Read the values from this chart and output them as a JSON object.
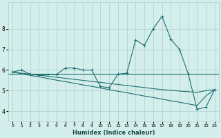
{
  "xlabel": "Humidex (Indice chaleur)",
  "x": [
    0,
    1,
    2,
    3,
    4,
    5,
    6,
    7,
    8,
    9,
    10,
    11,
    12,
    13,
    14,
    15,
    16,
    17,
    18,
    19,
    20,
    21,
    22,
    23
  ],
  "line1": [
    5.9,
    6.0,
    5.8,
    5.75,
    5.78,
    5.78,
    6.1,
    6.1,
    6.0,
    6.0,
    5.2,
    5.15,
    5.8,
    5.85,
    7.45,
    7.2,
    8.0,
    8.6,
    7.5,
    7.0,
    5.8,
    4.1,
    4.2,
    5.05
  ],
  "line2": [
    5.9,
    5.82,
    5.74,
    5.67,
    5.59,
    5.51,
    5.44,
    5.36,
    5.28,
    5.21,
    5.13,
    5.05,
    4.97,
    4.9,
    4.82,
    4.74,
    4.67,
    4.59,
    4.51,
    4.44,
    4.36,
    4.28,
    4.75,
    5.05
  ],
  "line3": [
    5.9,
    5.85,
    5.8,
    5.75,
    5.7,
    5.65,
    5.6,
    5.55,
    5.5,
    5.45,
    5.4,
    5.35,
    5.3,
    5.25,
    5.2,
    5.15,
    5.1,
    5.05,
    5.02,
    4.98,
    4.95,
    4.92,
    5.0,
    5.05
  ],
  "hline_y": 5.8,
  "bg_color": "#d4eeec",
  "grid_color": "#aacfcc",
  "line_color": "#1a6e6e",
  "xlim": [
    -0.5,
    23.5
  ],
  "ylim": [
    3.5,
    9.3
  ],
  "yticks": [
    4,
    5,
    6,
    7,
    8
  ],
  "xtick_labels": [
    "0",
    "1",
    "2",
    "3",
    "4",
    "5",
    "6",
    "7",
    "8",
    "9",
    "10",
    "11",
    "12",
    "13",
    "14",
    "15",
    "16",
    "17",
    "18",
    "19",
    "20",
    "21",
    "22",
    "23"
  ]
}
